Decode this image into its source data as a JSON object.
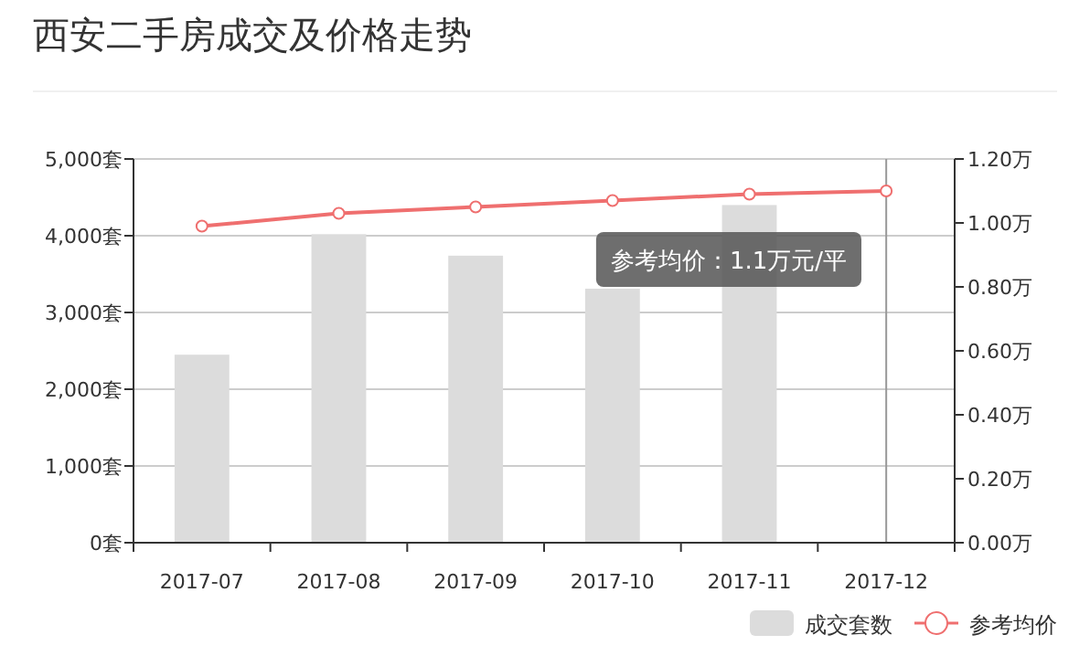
{
  "chart_data": {
    "type": "bar",
    "title": "西安二手房成交及价格走势",
    "categories": [
      "2017-07",
      "2017-08",
      "2017-09",
      "2017-10",
      "2017-11",
      "2017-12"
    ],
    "series": [
      {
        "name": "成交套数",
        "color": "#dcdcdc",
        "values": [
          2450,
          4020,
          3740,
          3310,
          4400,
          null
        ]
      },
      {
        "name": "参考均价",
        "type": "line",
        "axis": "y2",
        "color": "#ef6f6f",
        "values": [
          0.99,
          1.03,
          1.05,
          1.07,
          1.09,
          1.1
        ]
      }
    ],
    "ylim": [
      0,
      5000
    ],
    "yticks": [
      {
        "value": 0,
        "label": "0套"
      },
      {
        "value": 1000,
        "label": "1,000套"
      },
      {
        "value": 2000,
        "label": "2,000套"
      },
      {
        "value": 3000,
        "label": "3,000套"
      },
      {
        "value": 4000,
        "label": "4,000套"
      },
      {
        "value": 5000,
        "label": "5,000套"
      }
    ],
    "y2lim": [
      0,
      1.2
    ],
    "y2ticks": [
      {
        "value": 0,
        "label": "0.00万"
      },
      {
        "value": 0.2,
        "label": "0.20万"
      },
      {
        "value": 0.4,
        "label": "0.40万"
      },
      {
        "value": 0.6,
        "label": "0.60万"
      },
      {
        "value": 0.8,
        "label": "0.80万"
      },
      {
        "value": 1.0,
        "label": "1.00万"
      },
      {
        "value": 1.2,
        "label": "1.20万"
      }
    ],
    "grid": "y",
    "legend": "bottom right",
    "marker": "circle",
    "line_style": "solid",
    "ref_lines": [
      {
        "axis": "x",
        "value": "2017-12",
        "color": "#999999"
      }
    ],
    "annotations": [
      "参考均价：1.1万元/平"
    ]
  }
}
